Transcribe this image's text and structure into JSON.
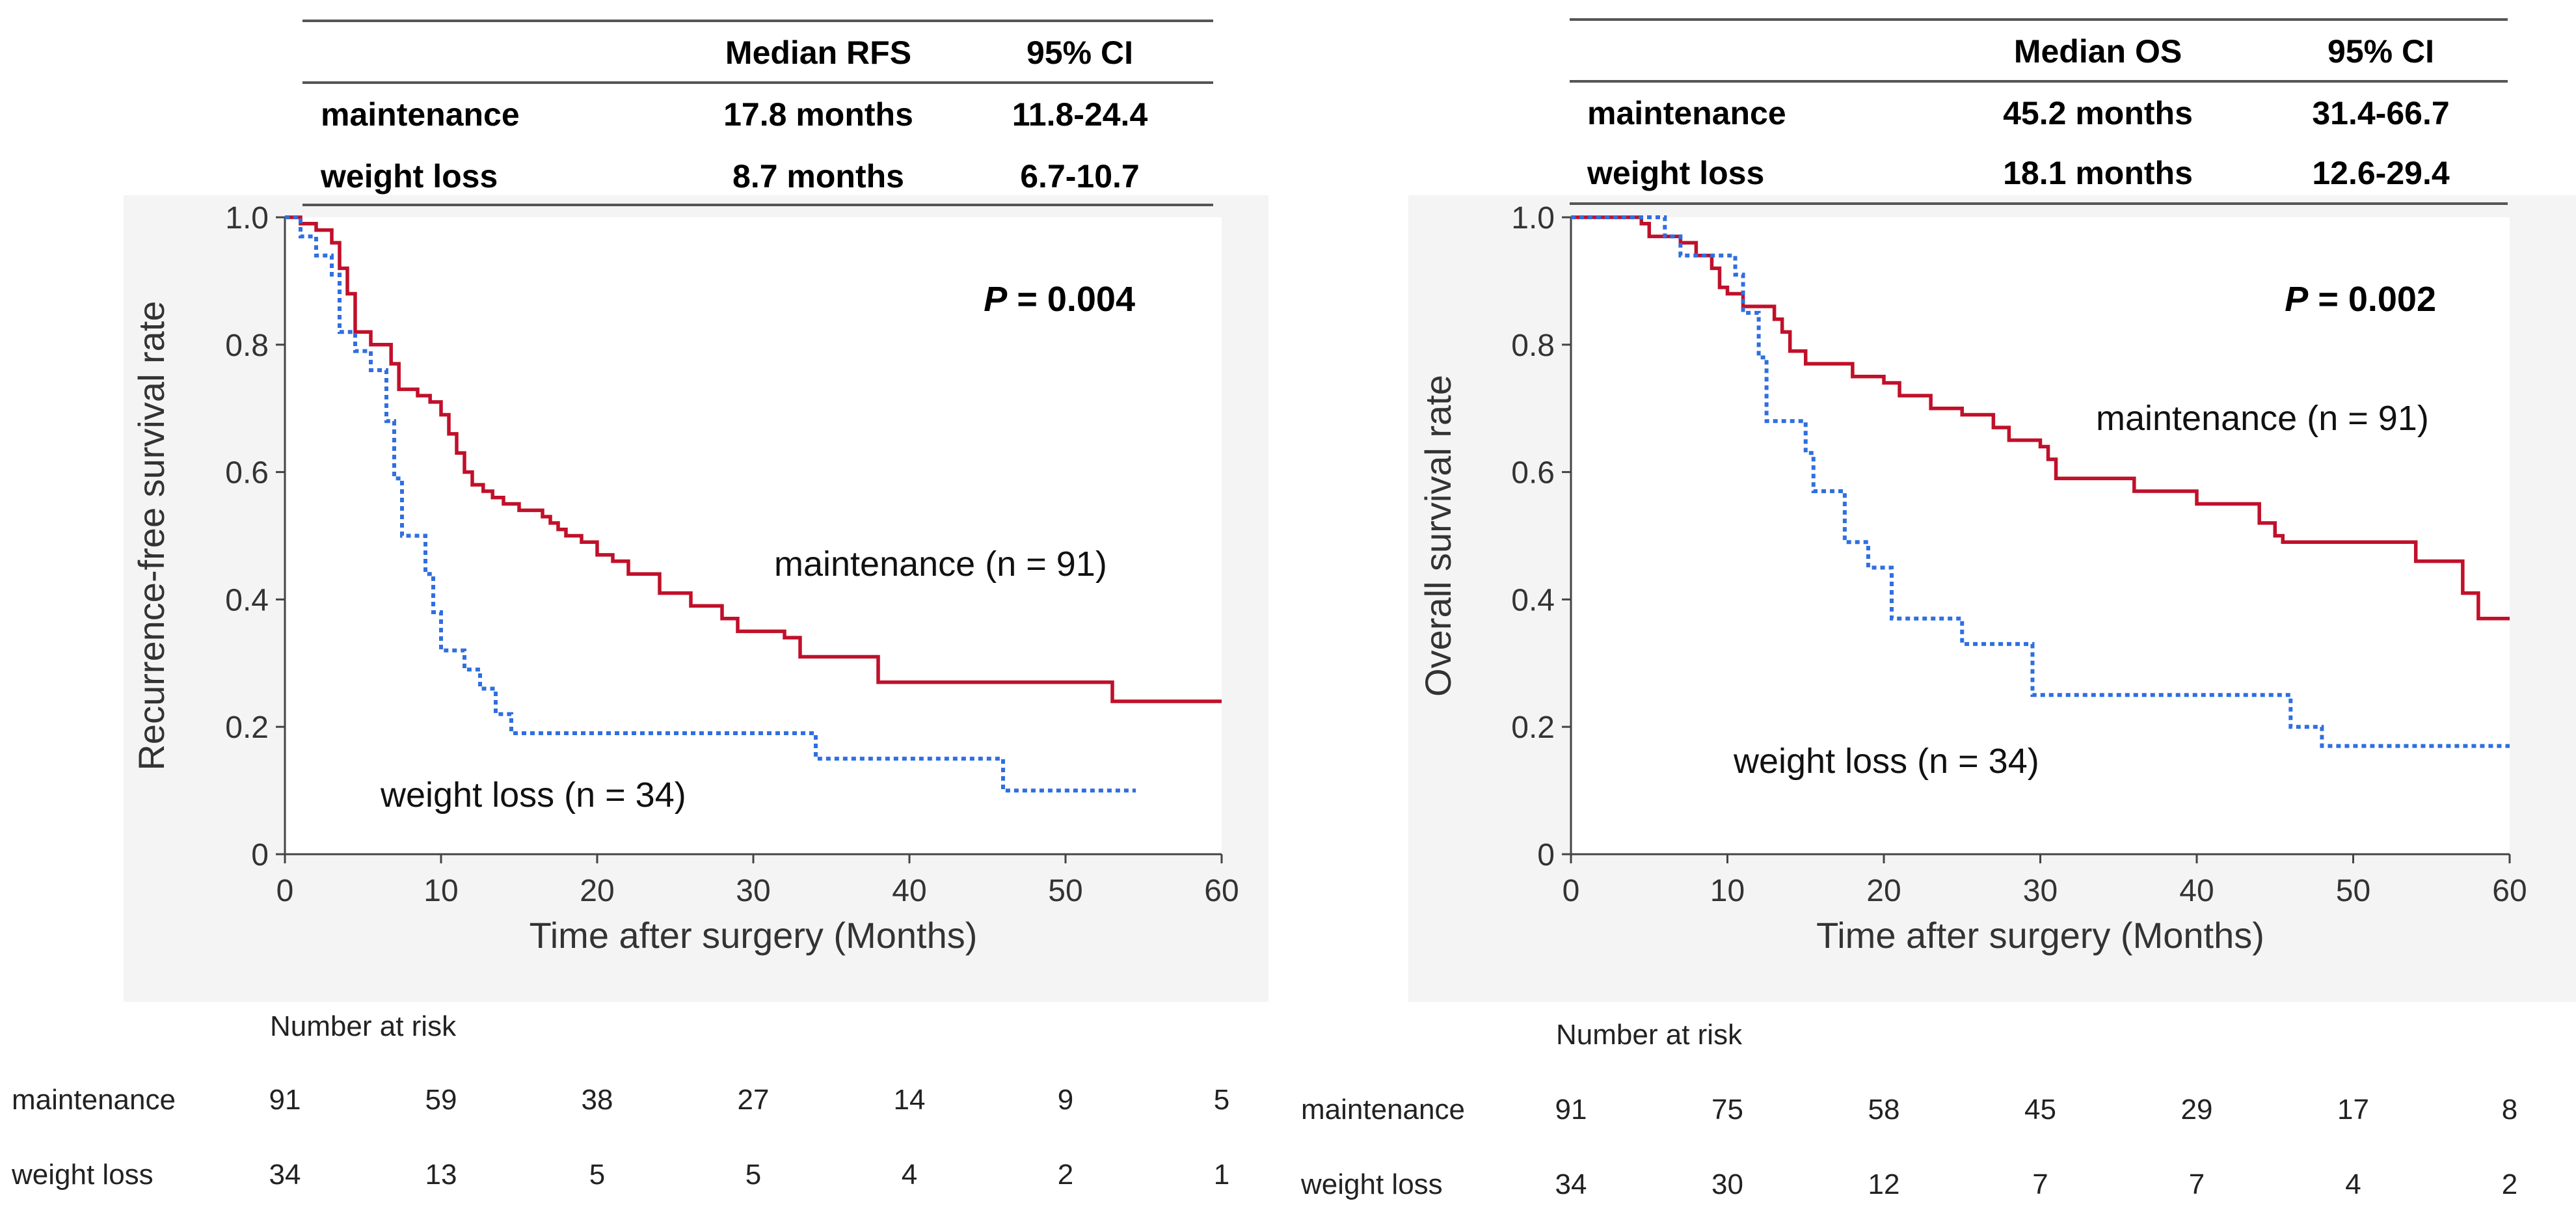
{
  "chart_data": [
    {
      "type": "line",
      "subtype": "kaplan-meier",
      "summary_table": {
        "headers": [
          "",
          "Median RFS",
          "95% CI"
        ],
        "rows": [
          [
            "maintenance",
            "17.8 months",
            "11.8-24.4"
          ],
          [
            "weight loss",
            "8.7 months",
            "6.7-10.7"
          ]
        ]
      },
      "p_label": "P",
      "p_value": " = 0.004",
      "xlabel": "Time after surgery (Months)",
      "ylabel": "Recurrence-free survival rate",
      "xlim": [
        0,
        60
      ],
      "ylim": [
        0,
        1
      ],
      "x_ticks": [
        0,
        10,
        20,
        30,
        40,
        50,
        60
      ],
      "y_ticks": [
        0,
        0.2,
        0.4,
        0.6,
        0.8,
        1.0
      ],
      "y_tick_labels": [
        "0",
        "0.2",
        "0.4",
        "0.6",
        "0.8",
        "1.0"
      ],
      "series": [
        {
          "name": "maintenance",
          "label": "maintenance (n = 91)",
          "color": "#c0102a",
          "style": "solid",
          "steps": [
            [
              0,
              1.0
            ],
            [
              1,
              0.99
            ],
            [
              2,
              0.98
            ],
            [
              3,
              0.96
            ],
            [
              3.5,
              0.92
            ],
            [
              4,
              0.88
            ],
            [
              4.5,
              0.82
            ],
            [
              5.5,
              0.8
            ],
            [
              6.8,
              0.77
            ],
            [
              7.3,
              0.73
            ],
            [
              8.5,
              0.72
            ],
            [
              9.3,
              0.71
            ],
            [
              10,
              0.69
            ],
            [
              10.5,
              0.66
            ],
            [
              11,
              0.63
            ],
            [
              11.5,
              0.6
            ],
            [
              12,
              0.58
            ],
            [
              12.7,
              0.57
            ],
            [
              13.3,
              0.56
            ],
            [
              14,
              0.55
            ],
            [
              15,
              0.54
            ],
            [
              16.5,
              0.53
            ],
            [
              17,
              0.52
            ],
            [
              17.5,
              0.51
            ],
            [
              18,
              0.5
            ],
            [
              19,
              0.49
            ],
            [
              20,
              0.47
            ],
            [
              21,
              0.46
            ],
            [
              22,
              0.44
            ],
            [
              24,
              0.41
            ],
            [
              26,
              0.39
            ],
            [
              28,
              0.37
            ],
            [
              29,
              0.35
            ],
            [
              32,
              0.34
            ],
            [
              33,
              0.31
            ],
            [
              38,
              0.27
            ],
            [
              53,
              0.24
            ],
            [
              60,
              0.24
            ]
          ]
        },
        {
          "name": "weight loss",
          "label": "weight loss (n = 34)",
          "color": "#2f6fe0",
          "style": "dotted",
          "steps": [
            [
              0,
              1.0
            ],
            [
              1,
              0.97
            ],
            [
              2,
              0.94
            ],
            [
              3,
              0.91
            ],
            [
              3.5,
              0.82
            ],
            [
              4.5,
              0.79
            ],
            [
              5.5,
              0.76
            ],
            [
              6.5,
              0.68
            ],
            [
              7,
              0.59
            ],
            [
              7.5,
              0.5
            ],
            [
              9,
              0.44
            ],
            [
              9.5,
              0.38
            ],
            [
              10,
              0.32
            ],
            [
              11.5,
              0.29
            ],
            [
              12.5,
              0.26
            ],
            [
              13.5,
              0.22
            ],
            [
              14.5,
              0.19
            ],
            [
              34,
              0.15
            ],
            [
              46,
              0.1
            ],
            [
              54.5,
              0.1
            ]
          ]
        }
      ],
      "risk_table": {
        "title": "Number at risk",
        "times": [
          0,
          10,
          20,
          30,
          40,
          50,
          60
        ],
        "rows": [
          {
            "label": "maintenance",
            "values": [
              "91",
              "59",
              "38",
              "27",
              "14",
              "9",
              "5"
            ]
          },
          {
            "label": "weight loss",
            "values": [
              "34",
              "13",
              "5",
              "5",
              "4",
              "2",
              "1"
            ]
          }
        ]
      }
    },
    {
      "type": "line",
      "subtype": "kaplan-meier",
      "summary_table": {
        "headers": [
          "",
          "Median OS",
          "95% CI"
        ],
        "rows": [
          [
            "maintenance",
            "45.2 months",
            "31.4-66.7"
          ],
          [
            "weight loss",
            "18.1 months",
            "12.6-29.4"
          ]
        ]
      },
      "p_label": "P",
      "p_value": " = 0.002",
      "xlabel": "Time after surgery (Months)",
      "ylabel": "Overall survival rate",
      "xlim": [
        0,
        60
      ],
      "ylim": [
        0,
        1
      ],
      "x_ticks": [
        0,
        10,
        20,
        30,
        40,
        50,
        60
      ],
      "y_ticks": [
        0,
        0.2,
        0.4,
        0.6,
        0.8,
        1.0
      ],
      "y_tick_labels": [
        "0",
        "0.2",
        "0.4",
        "0.6",
        "0.8",
        "1.0"
      ],
      "series": [
        {
          "name": "maintenance",
          "label": "maintenance (n = 91)",
          "color": "#c0102a",
          "style": "solid",
          "steps": [
            [
              0,
              1.0
            ],
            [
              4.5,
              0.99
            ],
            [
              5,
              0.97
            ],
            [
              7,
              0.96
            ],
            [
              8,
              0.94
            ],
            [
              9,
              0.92
            ],
            [
              9.5,
              0.89
            ],
            [
              10,
              0.88
            ],
            [
              11,
              0.86
            ],
            [
              13,
              0.84
            ],
            [
              13.5,
              0.82
            ],
            [
              14,
              0.79
            ],
            [
              15,
              0.77
            ],
            [
              18,
              0.75
            ],
            [
              20,
              0.74
            ],
            [
              21,
              0.72
            ],
            [
              23,
              0.7
            ],
            [
              25,
              0.69
            ],
            [
              27,
              0.67
            ],
            [
              28,
              0.65
            ],
            [
              30,
              0.64
            ],
            [
              30.5,
              0.62
            ],
            [
              31,
              0.59
            ],
            [
              36,
              0.57
            ],
            [
              40,
              0.55
            ],
            [
              44,
              0.52
            ],
            [
              45,
              0.5
            ],
            [
              45.5,
              0.49
            ],
            [
              54,
              0.46
            ],
            [
              57,
              0.41
            ],
            [
              58,
              0.37
            ],
            [
              60,
              0.37
            ]
          ]
        },
        {
          "name": "weight loss",
          "label": "weight loss (n = 34)",
          "color": "#2f6fe0",
          "style": "dotted",
          "steps": [
            [
              0,
              1.0
            ],
            [
              6,
              0.97
            ],
            [
              7,
              0.94
            ],
            [
              10.5,
              0.91
            ],
            [
              11,
              0.85
            ],
            [
              12,
              0.78
            ],
            [
              12.5,
              0.68
            ],
            [
              15,
              0.63
            ],
            [
              15.5,
              0.57
            ],
            [
              17.5,
              0.49
            ],
            [
              19,
              0.45
            ],
            [
              20.5,
              0.37
            ],
            [
              25,
              0.33
            ],
            [
              29.5,
              0.25
            ],
            [
              46,
              0.2
            ],
            [
              48,
              0.17
            ],
            [
              60,
              0.17
            ]
          ]
        }
      ],
      "risk_table": {
        "title": "Number at risk",
        "times": [
          0,
          10,
          20,
          30,
          40,
          50,
          60
        ],
        "rows": [
          {
            "label": "maintenance",
            "values": [
              "91",
              "75",
              "58",
              "45",
              "29",
              "17",
              "8"
            ]
          },
          {
            "label": "weight loss",
            "values": [
              "34",
              "30",
              "12",
              "7",
              "7",
              "4",
              "2"
            ]
          }
        ]
      }
    }
  ]
}
